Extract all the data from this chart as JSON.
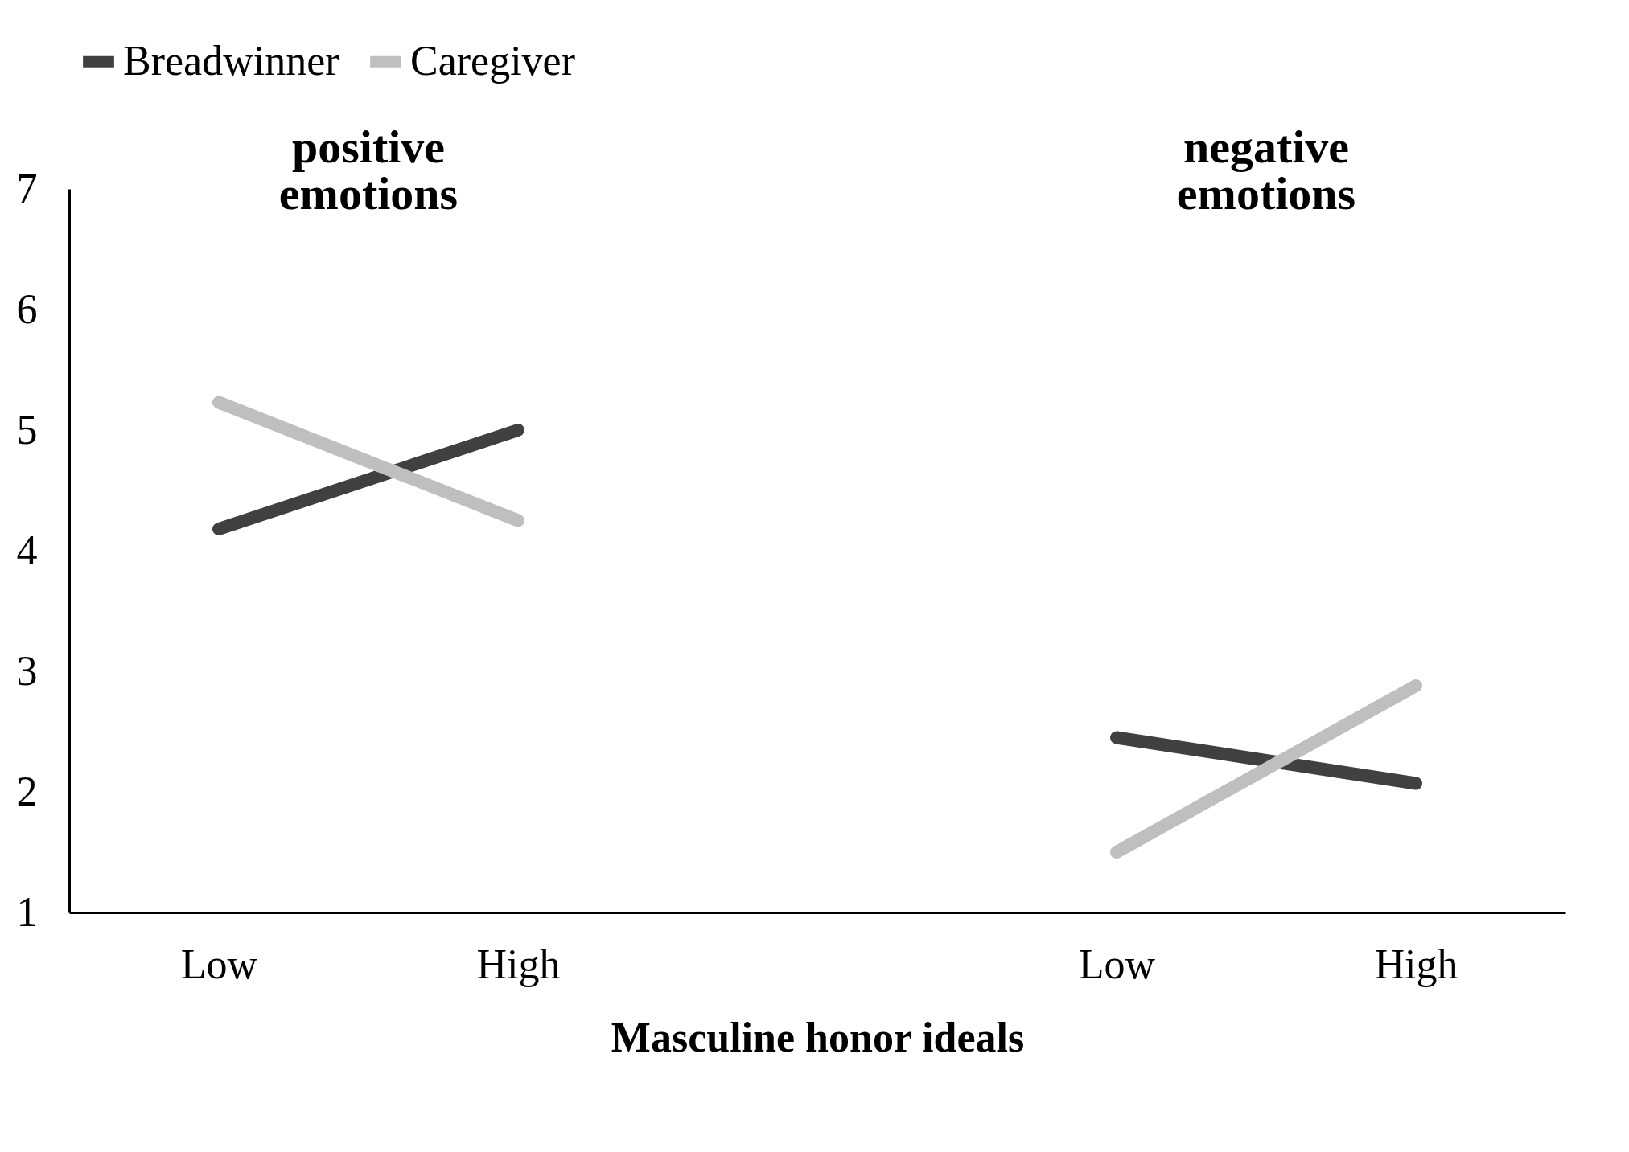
{
  "chart_data": {
    "type": "line",
    "xlabel": "Masculine honor ideals",
    "categories": [
      "Low",
      "High",
      null,
      "Low",
      "High"
    ],
    "series": [
      {
        "name": "Breadwinner",
        "color": "#404040",
        "values": [
          4.18,
          5.0,
          null,
          2.45,
          2.07
        ]
      },
      {
        "name": "Caregiver",
        "color": "#bfbfbf",
        "values": [
          5.23,
          4.25,
          null,
          1.5,
          2.88
        ]
      }
    ],
    "annotations": [
      "positive emotions",
      "negative emotions"
    ],
    "ylim": [
      1,
      7
    ],
    "yticks": [
      1,
      2,
      3,
      4,
      5,
      6,
      7
    ],
    "grid": false,
    "legend": "top",
    "marker": "none",
    "line_style": "solid"
  }
}
